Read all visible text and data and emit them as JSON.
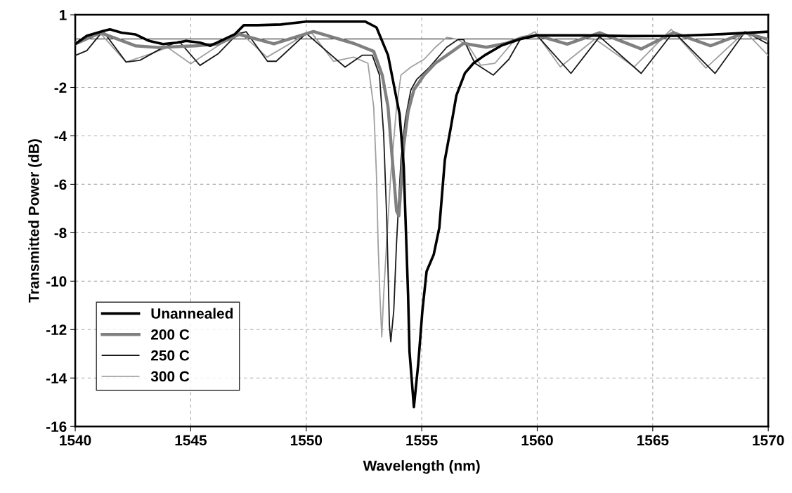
{
  "chart_data": {
    "type": "line",
    "xlabel": "Wavelength (nm)",
    "ylabel": "Transmitted Power (dB)",
    "xlim": [
      1540,
      1570
    ],
    "xticks": [
      1540,
      1545,
      1550,
      1555,
      1560,
      1565,
      1570
    ],
    "ylim": [
      -16,
      1
    ],
    "yticks": [
      1,
      -2,
      -4,
      -6,
      -8,
      -10,
      -12,
      -14,
      -16
    ],
    "grid": true,
    "legend": "bottom left",
    "line_style": "solid",
    "marker": "none",
    "ref_lines": [
      {
        "axis": "y",
        "value": 0,
        "color": "#000000"
      }
    ],
    "series": [
      {
        "name": "Unannealed",
        "color": "#000000",
        "x": [
          1540.0,
          1540.5,
          1541.2,
          1541.5,
          1542.0,
          1542.6,
          1543.2,
          1543.8,
          1544.4,
          1544.8,
          1545.4,
          1545.85,
          1546.9,
          1547.3,
          1547.9,
          1548.9,
          1550.0,
          1552.55,
          1553.04,
          1553.54,
          1554.04,
          1554.22,
          1554.41,
          1554.47,
          1554.66,
          1554.85,
          1555.03,
          1555.21,
          1555.52,
          1555.76,
          1556.0,
          1556.25,
          1556.5,
          1556.87,
          1557.24,
          1557.73,
          1558.47,
          1559.2,
          1559.95,
          1562,
          1564,
          1566,
          1568,
          1569,
          1570
        ],
        "values": [
          -0.21,
          0.13,
          0.33,
          0.4,
          0.26,
          0.19,
          -0.08,
          -0.21,
          -0.15,
          -0.08,
          -0.15,
          -0.28,
          0.19,
          0.57,
          0.57,
          0.6,
          0.72,
          0.72,
          0.48,
          -0.67,
          -3.1,
          -5.25,
          -10.6,
          -12.9,
          -15.2,
          -13.4,
          -11.2,
          -9.6,
          -8.9,
          -7.8,
          -5.0,
          -3.7,
          -2.33,
          -1.41,
          -1.0,
          -0.67,
          -0.26,
          -0.02,
          0.15,
          0.15,
          0.12,
          0.13,
          0.2,
          0.25,
          0.3
        ]
      },
      {
        "name": "200 C",
        "color": "#808080",
        "x": [
          1540.0,
          1541.1,
          1542.6,
          1543.6,
          1545.2,
          1546.2,
          1547.1,
          1548.6,
          1550.31,
          1552.05,
          1552.92,
          1553.29,
          1553.54,
          1553.73,
          1553.91,
          1554.01,
          1554.1,
          1554.22,
          1554.41,
          1554.66,
          1555.1,
          1555.59,
          1556.33,
          1556.81,
          1557.3,
          1557.8,
          1558.65,
          1559.38,
          1560.0,
          1561.3,
          1562.7,
          1564.5,
          1565.9,
          1567.5,
          1569.0,
          1570
        ],
        "values": [
          -0.2,
          0.26,
          -0.28,
          -0.35,
          -0.28,
          -0.2,
          0.19,
          -0.2,
          0.31,
          -0.18,
          -0.51,
          -1.49,
          -2.8,
          -5.0,
          -7.1,
          -7.3,
          -6.1,
          -4.4,
          -3.0,
          -2.1,
          -1.49,
          -1.0,
          -0.51,
          -0.18,
          -0.26,
          -0.34,
          -0.18,
          0.07,
          0.15,
          -0.21,
          0.26,
          -0.41,
          0.26,
          -0.28,
          0.26,
          -0.02
        ]
      },
      {
        "name": "250 C",
        "color": "#1a1a1a",
        "x": [
          1540.0,
          1540.5,
          1541.2,
          1542.2,
          1542.8,
          1543.8,
          1544.5,
          1545.4,
          1546.2,
          1547.0,
          1547.4,
          1548.32,
          1548.7,
          1550.0,
          1551.68,
          1552.42,
          1552.86,
          1553.17,
          1553.35,
          1553.48,
          1553.54,
          1553.6,
          1553.66,
          1553.79,
          1553.91,
          1554.1,
          1554.29,
          1554.53,
          1554.79,
          1555.34,
          1556.08,
          1556.57,
          1556.81,
          1557.3,
          1558.1,
          1558.77,
          1559.26,
          1559.99,
          1561.46,
          1562.7,
          1564.5,
          1565.9,
          1567.7,
          1569.0,
          1570
        ],
        "values": [
          -0.68,
          -0.48,
          0.33,
          -0.95,
          -0.88,
          -0.35,
          -0.1,
          -1.09,
          -0.6,
          0.19,
          0.3,
          -0.92,
          -0.92,
          0.23,
          -1.16,
          -0.67,
          -0.67,
          -1.49,
          -3.9,
          -7.3,
          -9.5,
          -11.8,
          -12.5,
          -11.2,
          -8.4,
          -5.0,
          -3.3,
          -2.1,
          -1.66,
          -1.16,
          -0.34,
          -0.02,
          -0.02,
          -1.0,
          -1.49,
          -0.84,
          -0.02,
          0.15,
          -1.42,
          0.1,
          -1.42,
          0.3,
          -1.42,
          0.3,
          -0.21
        ]
      },
      {
        "name": "300 C",
        "color": "#a0a0a0",
        "x": [
          1540.0,
          1541.1,
          1542.2,
          1543.2,
          1544.0,
          1545.0,
          1547.1,
          1548.3,
          1550.19,
          1551.18,
          1552.05,
          1552.67,
          1552.92,
          1553.04,
          1553.11,
          1553.19,
          1553.27,
          1553.35,
          1553.48,
          1553.66,
          1553.91,
          1554.1,
          1554.53,
          1555.1,
          1555.59,
          1556.08,
          1556.57,
          1557.06,
          1557.55,
          1558.17,
          1558.9,
          1559.9,
          1561.0,
          1562.5,
          1564.2,
          1565.8,
          1567.3,
          1569.0,
          1570
        ],
        "values": [
          -0.14,
          0.22,
          -0.95,
          -0.63,
          -0.35,
          -1.02,
          0.3,
          -0.75,
          0.31,
          -0.92,
          -0.75,
          -1.0,
          -2.8,
          -5.6,
          -8.4,
          -10.6,
          -12.3,
          -10.6,
          -8.4,
          -5.6,
          -2.8,
          -1.49,
          -1.16,
          -0.84,
          -0.34,
          0.07,
          -0.02,
          -0.34,
          -1.08,
          -1.0,
          -0.18,
          0.3,
          -1.15,
          0.0,
          -1.15,
          0.4,
          -1.2,
          0.3,
          -0.68
        ]
      }
    ]
  }
}
